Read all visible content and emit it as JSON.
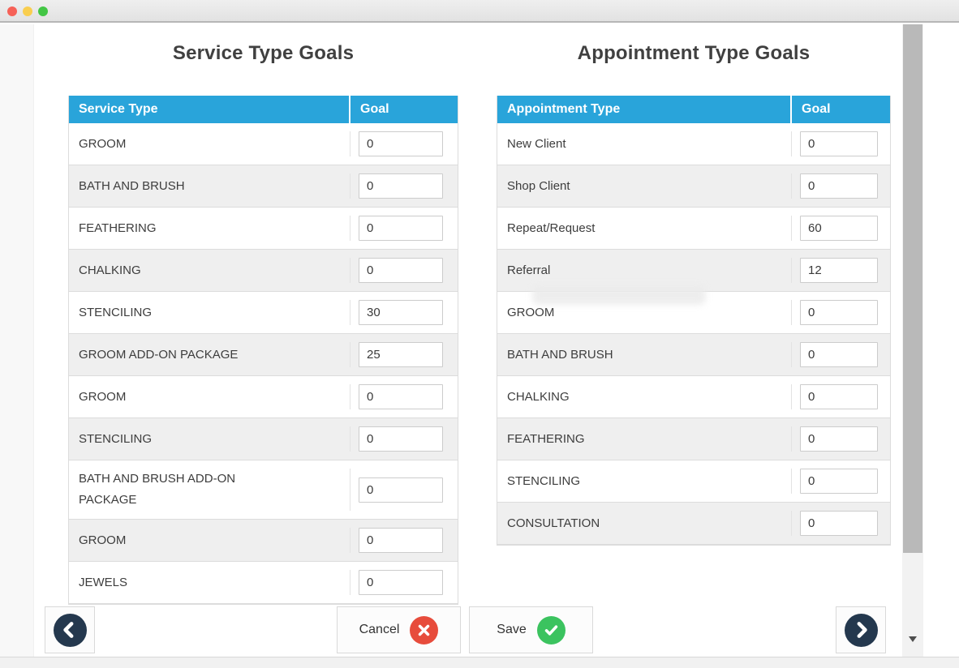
{
  "window": {
    "controls": [
      {
        "icon": "close-dot-icon",
        "color": "#f66157"
      },
      {
        "icon": "minimize-dot-icon",
        "color": "#f9ce4f"
      },
      {
        "icon": "maximize-dot-icon",
        "color": "#43c645"
      }
    ]
  },
  "service_goals": {
    "title": "Service Type Goals",
    "columns": {
      "type": "Service Type",
      "goal": "Goal"
    },
    "rows": [
      {
        "type": "GROOM",
        "goal": "0"
      },
      {
        "type": "BATH AND BRUSH",
        "goal": "0"
      },
      {
        "type": "FEATHERING",
        "goal": "0"
      },
      {
        "type": "CHALKING",
        "goal": "0"
      },
      {
        "type": "STENCILING",
        "goal": "30"
      },
      {
        "type": "GROOM ADD-ON PACKAGE",
        "goal": "25"
      },
      {
        "type": "GROOM",
        "goal": "0"
      },
      {
        "type": "STENCILING",
        "goal": "0"
      },
      {
        "type": "BATH AND BRUSH ADD-ON PACKAGE",
        "goal": "0"
      },
      {
        "type": "GROOM",
        "goal": "0"
      },
      {
        "type": "JEWELS",
        "goal": "0"
      }
    ]
  },
  "appointment_goals": {
    "title": "Appointment Type Goals",
    "columns": {
      "type": "Appointment Type",
      "goal": "Goal"
    },
    "rows": [
      {
        "type": "New Client",
        "goal": "0"
      },
      {
        "type": "Shop Client",
        "goal": "0"
      },
      {
        "type": "Repeat/Request",
        "goal": "60"
      },
      {
        "type": "Referral",
        "goal": "12"
      },
      {
        "type": "GROOM",
        "goal": "0"
      },
      {
        "type": "BATH AND BRUSH",
        "goal": "0"
      },
      {
        "type": "CHALKING",
        "goal": "0"
      },
      {
        "type": "FEATHERING",
        "goal": "0"
      },
      {
        "type": "STENCILING",
        "goal": "0"
      },
      {
        "type": "CONSULTATION",
        "goal": "0"
      }
    ]
  },
  "footer": {
    "cancel_label": "Cancel",
    "save_label": "Save",
    "icons": {
      "prev": "chevron-left-icon",
      "next": "chevron-right-icon",
      "cancel": "x-circle-icon",
      "save": "check-circle-icon"
    }
  },
  "colors": {
    "header_blue": "#29a4da",
    "row_alt": "#efefef",
    "navy_circle": "#24384e",
    "cancel_red": "#e74c3c",
    "save_green": "#3bc35f"
  }
}
